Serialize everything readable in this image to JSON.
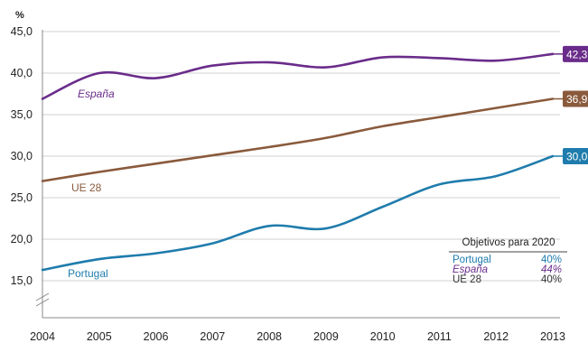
{
  "chart_data": {
    "type": "line",
    "ylabel": "%",
    "ylim": [
      15,
      45
    ],
    "yticks": [
      "15,0",
      "20,0",
      "25,0",
      "30,0",
      "35,0",
      "40,0",
      "45,0"
    ],
    "categories": [
      "2004",
      "2005",
      "2006",
      "2007",
      "2008",
      "2009",
      "2010",
      "2011",
      "2012",
      "2013"
    ],
    "grid": true,
    "axis_break": true,
    "series": [
      {
        "name": "España",
        "color": "#6a2c8a",
        "italic": true,
        "end_label": "42,3",
        "values": [
          36.9,
          40.0,
          39.4,
          40.9,
          41.3,
          40.7,
          41.9,
          41.8,
          41.5,
          42.3
        ]
      },
      {
        "name": "UE 28",
        "color": "#8a5a3c",
        "italic": false,
        "end_label": "36,9",
        "values": [
          27.0,
          28.1,
          29.1,
          30.1,
          31.1,
          32.2,
          33.6,
          34.7,
          35.8,
          36.9
        ]
      },
      {
        "name": "Portugal",
        "color": "#1f7cac",
        "italic": false,
        "end_label": "30,0",
        "values": [
          16.3,
          17.6,
          18.3,
          19.5,
          21.6,
          21.3,
          23.9,
          26.6,
          27.6,
          30.0
        ]
      }
    ],
    "legend": {
      "title": "Objetivos para 2020",
      "placement": "bottom-right",
      "entries": [
        {
          "name": "Portugal",
          "value": "40%",
          "color": "#1f7cac",
          "italic": false
        },
        {
          "name": "España",
          "value": "44%",
          "color": "#6a2c8a",
          "italic": true
        },
        {
          "name": "UE 28",
          "value": "40%",
          "color": "#333333",
          "italic": false
        }
      ]
    }
  }
}
